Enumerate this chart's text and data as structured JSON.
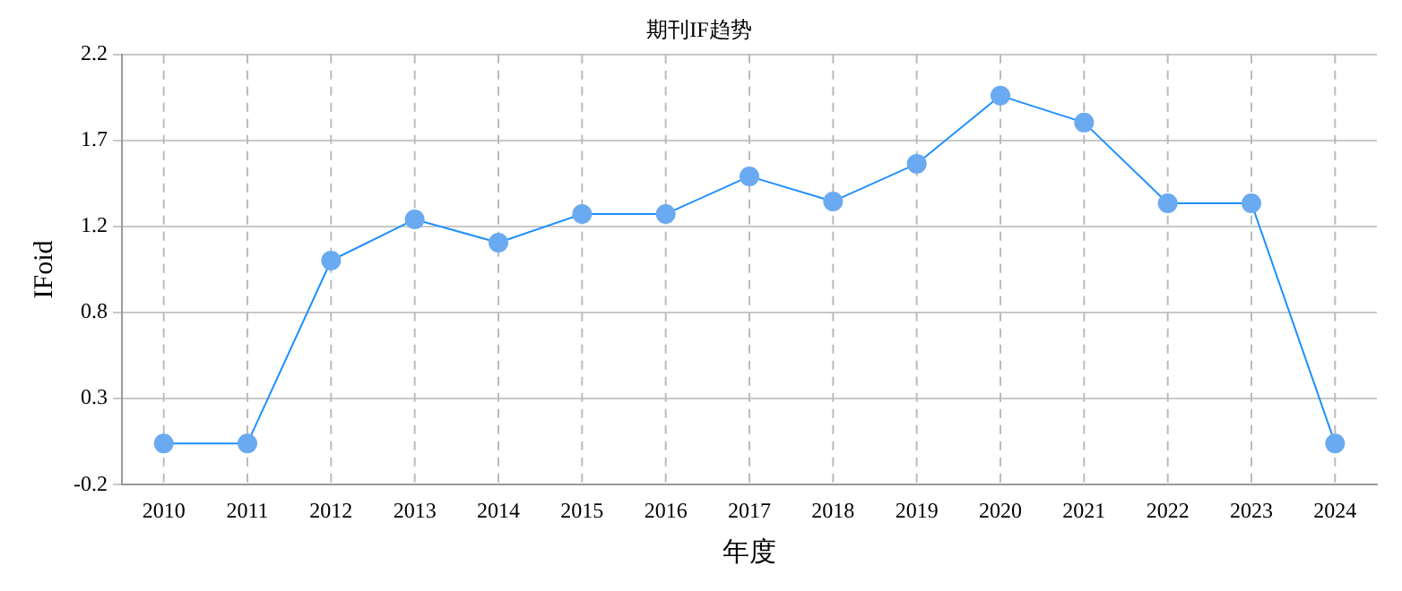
{
  "chart_data": {
    "type": "line",
    "title": "期刊IF趋势",
    "xlabel": "年度",
    "ylabel": "IFoid",
    "categories": [
      "2010",
      "2011",
      "2012",
      "2013",
      "2014",
      "2015",
      "2016",
      "2017",
      "2018",
      "2019",
      "2020",
      "2021",
      "2022",
      "2023",
      "2024"
    ],
    "series": [
      {
        "color": "#1e90ff",
        "values": [
          0.03,
          0.03,
          1.05,
          1.28,
          1.15,
          1.31,
          1.31,
          1.52,
          1.38,
          1.59,
          1.97,
          1.82,
          1.37,
          1.37,
          0.03
        ]
      }
    ],
    "ylim": [
      -0.2,
      2.2
    ],
    "yticks": [
      -0.2,
      {
        "value": 0.28,
        "label": "0.3"
      },
      {
        "value": 0.76,
        "label": "0.8"
      },
      {
        "value": 1.24,
        "label": "1.2"
      },
      {
        "value": 1.72,
        "label": "1.7"
      },
      2.2
    ],
    "grid": true,
    "legend": false,
    "marker": "circle",
    "line_style": "solid"
  }
}
